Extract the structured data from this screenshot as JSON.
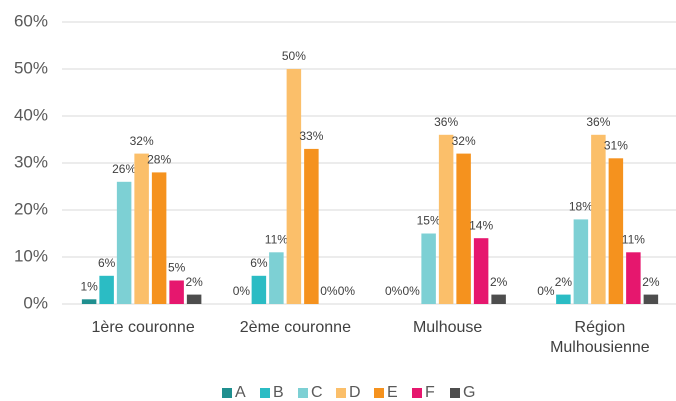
{
  "chart_data": {
    "type": "bar",
    "categories": [
      "1ère couronne",
      "2ème couronne",
      "Mulhouse",
      "Région Mulhousienne"
    ],
    "series": [
      {
        "name": "A",
        "color": "#1f8f8f",
        "values": [
          1,
          0,
          0,
          0
        ],
        "value_labels": [
          "1%",
          "0%",
          "0%",
          "0%"
        ]
      },
      {
        "name": "B",
        "color": "#2bbcc4",
        "values": [
          6,
          6,
          0,
          2
        ],
        "value_labels": [
          "6%",
          "6%",
          "0%",
          "2%"
        ]
      },
      {
        "name": "C",
        "color": "#7dd0d4",
        "values": [
          26,
          11,
          15,
          18
        ],
        "value_labels": [
          "26%",
          "11%",
          "15%",
          "18%"
        ]
      },
      {
        "name": "D",
        "color": "#fbbf6a",
        "values": [
          32,
          50,
          36,
          36
        ],
        "value_labels": [
          "32%",
          "50%",
          "36%",
          "36%"
        ]
      },
      {
        "name": "E",
        "color": "#f5921e",
        "values": [
          28,
          33,
          32,
          31
        ],
        "value_labels": [
          "28%",
          "33%",
          "32%",
          "31%"
        ]
      },
      {
        "name": "F",
        "color": "#e6176e",
        "values": [
          5,
          0,
          14,
          11
        ],
        "value_labels": [
          "5%",
          "0%",
          "14%",
          "11%"
        ]
      },
      {
        "name": "G",
        "color": "#4d4d4d",
        "values": [
          2,
          0,
          2,
          2
        ],
        "value_labels": [
          "2%",
          "0%",
          "2%",
          "2%"
        ]
      }
    ],
    "ylim": [
      0,
      60
    ],
    "yticks": [
      {
        "value": 0,
        "label": "0%"
      },
      {
        "value": 10,
        "label": "10%"
      },
      {
        "value": 20,
        "label": "20%"
      },
      {
        "value": 30,
        "label": "30%"
      },
      {
        "value": 40,
        "label": "40%"
      },
      {
        "value": 50,
        "label": "50%"
      },
      {
        "value": 60,
        "label": "60%"
      }
    ],
    "grid": true,
    "legend": "bottom"
  }
}
